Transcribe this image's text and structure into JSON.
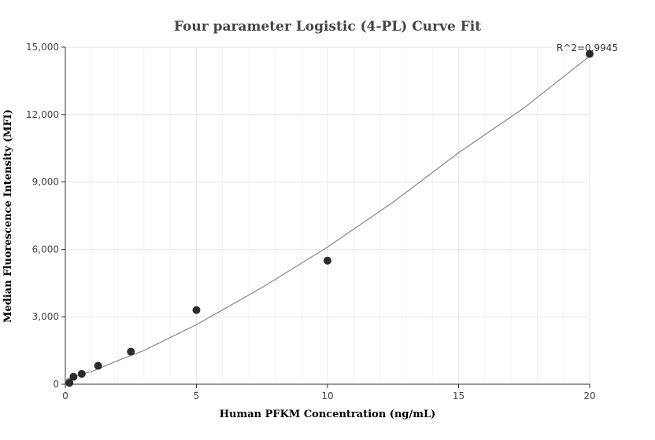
{
  "chart_data": {
    "type": "scatter",
    "title": "Four parameter Logistic (4-PL) Curve Fit",
    "xlabel": "Human PFKM Concentration (ng/mL)",
    "ylabel": "Median Fluorescence Intensity (MFI)",
    "xlim": [
      0,
      20
    ],
    "ylim": [
      0,
      15000
    ],
    "x_ticks": [
      0,
      5,
      10,
      15,
      20
    ],
    "x_tick_labels": [
      "0",
      "5",
      "10",
      "15",
      "20"
    ],
    "y_ticks": [
      0,
      3000,
      6000,
      9000,
      12000,
      15000
    ],
    "y_tick_labels": [
      "0",
      "3,000",
      "6,000",
      "9,000",
      "12,000",
      "15,000"
    ],
    "grid": true,
    "annotation": "R^2=0.9945",
    "point_color": "#2b2b2b",
    "line_color": "#888888",
    "series": [
      {
        "kind": "points",
        "x": [
          0.156,
          0.3125,
          0.625,
          1.25,
          2.5,
          5,
          10,
          20
        ],
        "y": [
          60,
          330,
          460,
          820,
          1450,
          3300,
          5500,
          14700
        ]
      },
      {
        "kind": "fit",
        "x": [
          0,
          0.5,
          1,
          2,
          3,
          5,
          7.5,
          10,
          12.5,
          15,
          17.5,
          20
        ],
        "y": [
          200,
          400,
          560,
          1050,
          1500,
          2650,
          4300,
          6100,
          8100,
          10300,
          12300,
          14600
        ]
      }
    ]
  }
}
